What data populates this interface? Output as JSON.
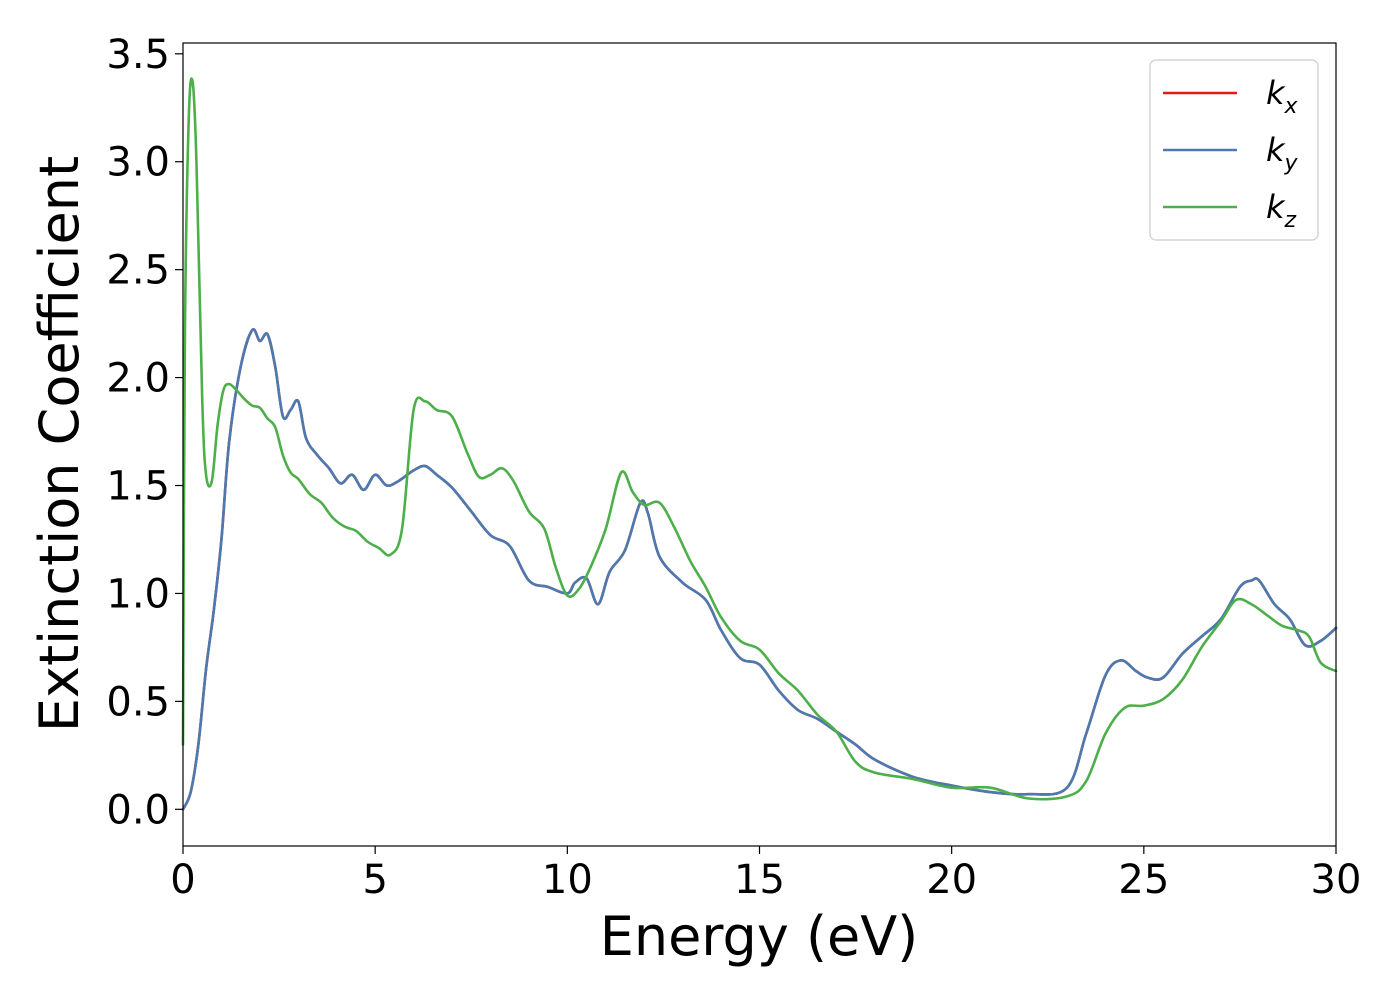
{
  "chart_data": {
    "type": "line",
    "title": "",
    "xlabel": "Energy (eV)",
    "ylabel": "Extinction Coefficient",
    "xlim": [
      0,
      30
    ],
    "ylim": [
      -0.17,
      3.55
    ],
    "xticks": [
      0,
      5,
      10,
      15,
      20,
      25,
      30
    ],
    "xtick_labels": [
      "0",
      "5",
      "10",
      "15",
      "20",
      "25",
      "30"
    ],
    "yticks": [
      0.0,
      0.5,
      1.0,
      1.5,
      2.0,
      2.5,
      3.0,
      3.5
    ],
    "ytick_labels": [
      "0.0",
      "0.5",
      "1.0",
      "1.5",
      "2.0",
      "2.5",
      "3.0",
      "3.5"
    ],
    "grid": false,
    "legend_position": "top-right",
    "series": [
      {
        "name": "k_x",
        "legend_base": "k",
        "legend_sub": "x",
        "color": "#e41a1c",
        "x": [
          0,
          0.2,
          0.4,
          0.6,
          0.8,
          1.0,
          1.2,
          1.5,
          1.8,
          2.0,
          2.2,
          2.4,
          2.6,
          2.8,
          3.0,
          3.2,
          3.5,
          3.8,
          4.1,
          4.4,
          4.7,
          5.0,
          5.3,
          5.6,
          6.0,
          6.3,
          6.6,
          7.0,
          7.5,
          8.0,
          8.5,
          9.0,
          9.5,
          10.0,
          10.2,
          10.5,
          10.8,
          11.1,
          11.5,
          11.9,
          12.1,
          12.4,
          13.0,
          13.6,
          14.0,
          14.5,
          15.0,
          15.5,
          16.0,
          16.5,
          17.0,
          17.5,
          18.0,
          19.0,
          20.0,
          21.0,
          22.0,
          23.0,
          23.5,
          24.0,
          24.4,
          24.8,
          25.1,
          25.5,
          26.0,
          26.5,
          27.0,
          27.5,
          27.8,
          28.0,
          28.4,
          28.8,
          29.2,
          29.6,
          30.0
        ],
        "y": [
          0.0,
          0.08,
          0.3,
          0.65,
          0.92,
          1.25,
          1.7,
          2.05,
          2.22,
          2.17,
          2.2,
          2.05,
          1.82,
          1.85,
          1.89,
          1.72,
          1.64,
          1.58,
          1.51,
          1.55,
          1.48,
          1.55,
          1.5,
          1.52,
          1.57,
          1.59,
          1.55,
          1.49,
          1.38,
          1.27,
          1.22,
          1.06,
          1.03,
          1.0,
          1.05,
          1.07,
          0.95,
          1.1,
          1.2,
          1.42,
          1.37,
          1.17,
          1.05,
          0.97,
          0.83,
          0.7,
          0.67,
          0.55,
          0.46,
          0.42,
          0.36,
          0.3,
          0.23,
          0.15,
          0.11,
          0.08,
          0.07,
          0.1,
          0.35,
          0.62,
          0.69,
          0.64,
          0.61,
          0.61,
          0.72,
          0.8,
          0.88,
          1.03,
          1.06,
          1.06,
          0.95,
          0.88,
          0.76,
          0.78,
          0.84
        ]
      },
      {
        "name": "k_y",
        "legend_base": "k",
        "legend_sub": "y",
        "color": "#4a7ab0",
        "x": [
          0,
          0.2,
          0.4,
          0.6,
          0.8,
          1.0,
          1.2,
          1.5,
          1.8,
          2.0,
          2.2,
          2.4,
          2.6,
          2.8,
          3.0,
          3.2,
          3.5,
          3.8,
          4.1,
          4.4,
          4.7,
          5.0,
          5.3,
          5.6,
          6.0,
          6.3,
          6.6,
          7.0,
          7.5,
          8.0,
          8.5,
          9.0,
          9.5,
          10.0,
          10.2,
          10.5,
          10.8,
          11.1,
          11.5,
          11.9,
          12.1,
          12.4,
          13.0,
          13.6,
          14.0,
          14.5,
          15.0,
          15.5,
          16.0,
          16.5,
          17.0,
          17.5,
          18.0,
          19.0,
          20.0,
          21.0,
          22.0,
          23.0,
          23.5,
          24.0,
          24.4,
          24.8,
          25.1,
          25.5,
          26.0,
          26.5,
          27.0,
          27.5,
          27.8,
          28.0,
          28.4,
          28.8,
          29.2,
          29.6,
          30.0
        ],
        "y": [
          0.0,
          0.08,
          0.3,
          0.65,
          0.92,
          1.25,
          1.7,
          2.05,
          2.22,
          2.17,
          2.2,
          2.05,
          1.82,
          1.85,
          1.89,
          1.72,
          1.64,
          1.58,
          1.51,
          1.55,
          1.48,
          1.55,
          1.5,
          1.52,
          1.57,
          1.59,
          1.55,
          1.49,
          1.38,
          1.27,
          1.22,
          1.06,
          1.03,
          1.0,
          1.05,
          1.07,
          0.95,
          1.1,
          1.2,
          1.42,
          1.37,
          1.17,
          1.05,
          0.97,
          0.83,
          0.7,
          0.67,
          0.55,
          0.46,
          0.42,
          0.36,
          0.3,
          0.23,
          0.15,
          0.11,
          0.08,
          0.07,
          0.1,
          0.35,
          0.62,
          0.69,
          0.64,
          0.61,
          0.61,
          0.72,
          0.8,
          0.88,
          1.03,
          1.06,
          1.06,
          0.95,
          0.88,
          0.76,
          0.78,
          0.84
        ]
      },
      {
        "name": "k_z",
        "legend_base": "k",
        "legend_sub": "z",
        "color": "#4daf4a",
        "x": [
          0,
          0.05,
          0.15,
          0.25,
          0.35,
          0.5,
          0.6,
          0.75,
          0.9,
          1.05,
          1.2,
          1.4,
          1.6,
          1.8,
          2.0,
          2.2,
          2.4,
          2.6,
          2.8,
          3.0,
          3.3,
          3.6,
          3.9,
          4.2,
          4.5,
          4.8,
          5.1,
          5.4,
          5.7,
          6.0,
          6.3,
          6.6,
          7.0,
          7.4,
          7.7,
          8.0,
          8.3,
          8.6,
          9.0,
          9.4,
          9.7,
          10.0,
          10.3,
          10.6,
          11.0,
          11.4,
          11.7,
          12.0,
          12.4,
          12.8,
          13.2,
          13.6,
          14.0,
          14.5,
          15.0,
          15.5,
          16.0,
          16.5,
          17.0,
          17.5,
          18.0,
          19.0,
          20.0,
          21.0,
          22.0,
          23.0,
          23.5,
          24.0,
          24.5,
          25.0,
          25.5,
          26.0,
          26.5,
          27.0,
          27.4,
          27.8,
          28.2,
          28.6,
          29.0,
          29.3,
          29.6,
          30.0
        ],
        "y": [
          0.3,
          2.2,
          3.2,
          3.37,
          3.0,
          1.9,
          1.55,
          1.52,
          1.78,
          1.94,
          1.97,
          1.94,
          1.9,
          1.87,
          1.86,
          1.81,
          1.77,
          1.64,
          1.56,
          1.53,
          1.46,
          1.42,
          1.35,
          1.31,
          1.29,
          1.24,
          1.21,
          1.18,
          1.3,
          1.85,
          1.89,
          1.85,
          1.82,
          1.65,
          1.54,
          1.55,
          1.58,
          1.52,
          1.38,
          1.3,
          1.12,
          0.99,
          1.02,
          1.12,
          1.3,
          1.56,
          1.47,
          1.41,
          1.42,
          1.3,
          1.15,
          1.03,
          0.89,
          0.78,
          0.74,
          0.63,
          0.55,
          0.44,
          0.36,
          0.22,
          0.17,
          0.14,
          0.1,
          0.1,
          0.05,
          0.06,
          0.13,
          0.35,
          0.47,
          0.48,
          0.51,
          0.6,
          0.75,
          0.87,
          0.97,
          0.95,
          0.9,
          0.85,
          0.83,
          0.8,
          0.68,
          0.64
        ]
      }
    ]
  }
}
